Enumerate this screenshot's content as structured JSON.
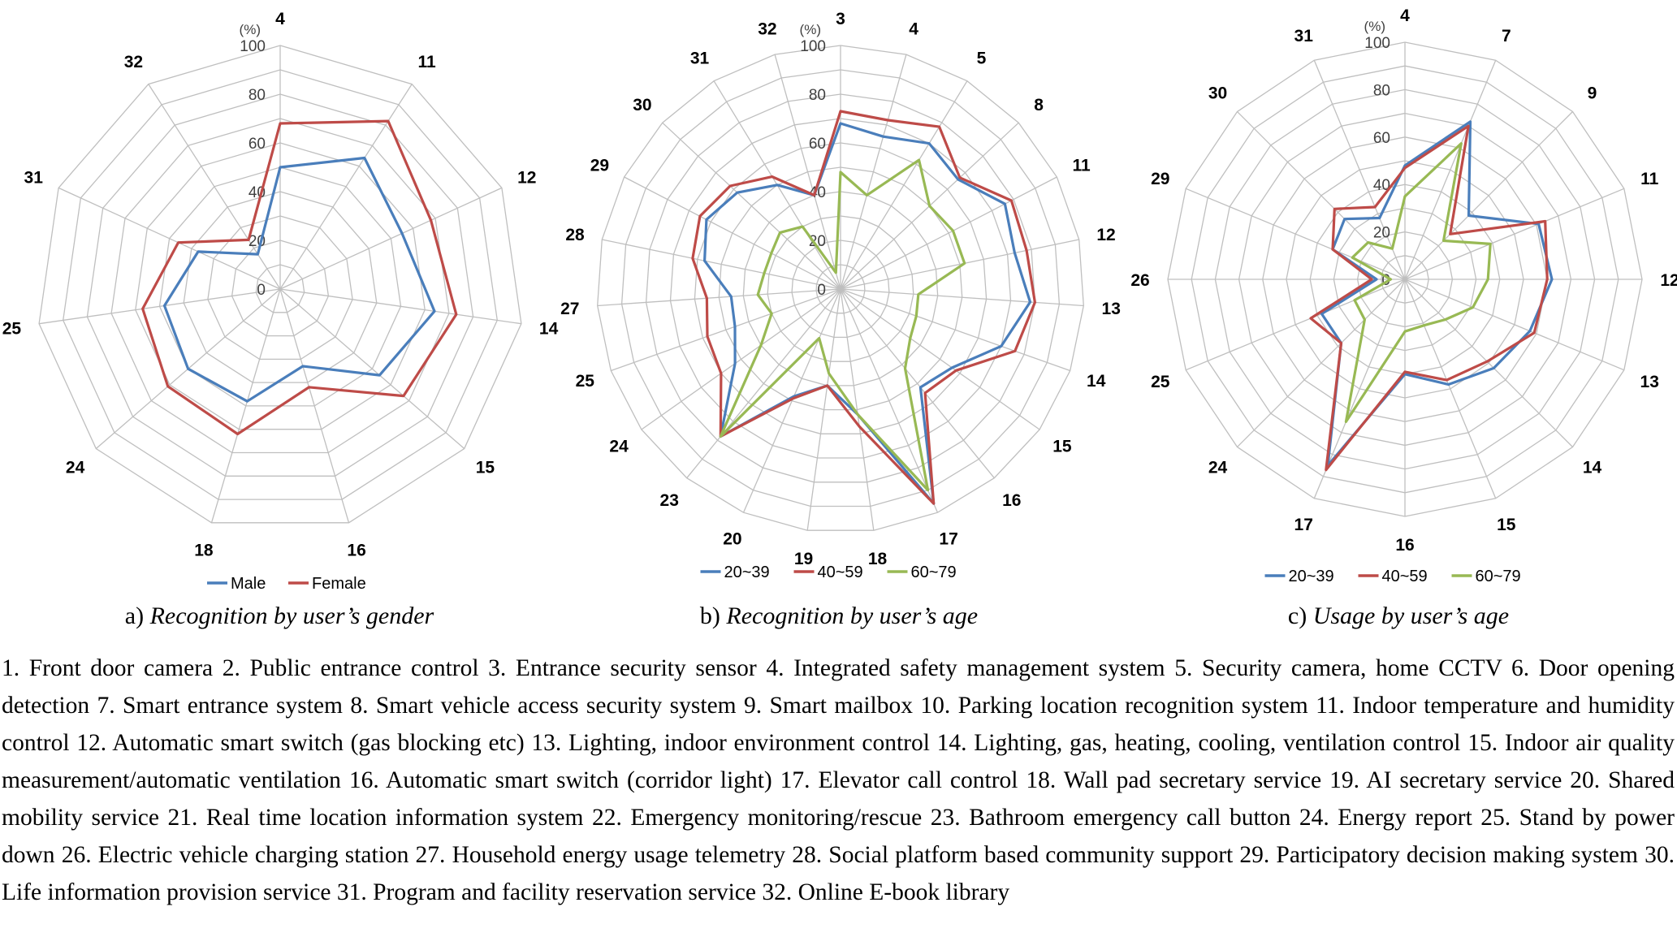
{
  "colors": {
    "male": "#4a7ebb",
    "female": "#be4b48",
    "age20": "#4a7ebb",
    "age40": "#be4b48",
    "age60": "#98b954",
    "grid": "#bfbfbf"
  },
  "chart_data": [
    {
      "type": "radar",
      "panel": "a",
      "caption_prefix": "a)",
      "caption_title": "Recognition by user’s gender",
      "unit_label": "(%)",
      "rlim": [
        0,
        100
      ],
      "ticks": [
        "0",
        "20",
        "40",
        "60",
        "80",
        "100"
      ],
      "categories": [
        "4",
        "11",
        "12",
        "14",
        "15",
        "16",
        "18",
        "24",
        "25",
        "31",
        "32"
      ],
      "series": [
        {
          "name": "Male",
          "values": [
            50,
            64,
            55,
            64,
            54,
            33,
            48,
            50,
            48,
            37,
            17
          ]
        },
        {
          "name": "Female",
          "values": [
            68,
            82,
            68,
            73,
            67,
            42,
            62,
            61,
            57,
            46,
            24
          ]
        }
      ],
      "legend_position": "bottom"
    },
    {
      "type": "radar",
      "panel": "b",
      "caption_prefix": "b)",
      "caption_title": "Recognition by user’s age",
      "unit_label": "(%)",
      "rlim": [
        0,
        100
      ],
      "ticks": [
        "0",
        "20",
        "40",
        "60",
        "80",
        "100"
      ],
      "categories": [
        "3",
        "4",
        "5",
        "8",
        "11",
        "12",
        "13",
        "14",
        "15",
        "16",
        "17",
        "18",
        "19",
        "20",
        "23",
        "24",
        "25",
        "27",
        "28",
        "29",
        "30",
        "31",
        "32"
      ],
      "series": [
        {
          "name": "20~39",
          "values": [
            68,
            65,
            70,
            66,
            76,
            73,
            78,
            70,
            56,
            52,
            96,
            52,
            40,
            48,
            78,
            53,
            46,
            45,
            57,
            62,
            58,
            50,
            40
          ]
        },
        {
          "name": "40~59",
          "values": [
            73,
            72,
            78,
            67,
            79,
            78,
            80,
            76,
            58,
            55,
            96,
            57,
            40,
            49,
            78,
            60,
            58,
            55,
            62,
            65,
            62,
            54,
            40
          ]
        },
        {
          "name": "60~79",
          "values": [
            48,
            40,
            62,
            50,
            52,
            52,
            32,
            33,
            35,
            42,
            90,
            52,
            35,
            22,
            78,
            40,
            30,
            34,
            32,
            32,
            34,
            30,
            7
          ]
        }
      ],
      "legend_position": "bottom"
    },
    {
      "type": "radar",
      "panel": "c",
      "caption_prefix": "c)",
      "caption_title": "Usage by user’s age",
      "unit_label": "(%)",
      "rlim": [
        0,
        100
      ],
      "ticks": [
        "0",
        "20",
        "40",
        "60",
        "80",
        "100"
      ],
      "categories": [
        "4",
        "7",
        "9",
        "11",
        "12",
        "13",
        "14",
        "15",
        "16",
        "17",
        "24",
        "25",
        "26",
        "29",
        "30",
        "31"
      ],
      "series": [
        {
          "name": "20~39",
          "values": [
            48,
            72,
            38,
            61,
            62,
            57,
            53,
            48,
            40,
            85,
            38,
            38,
            12,
            33,
            36,
            28
          ]
        },
        {
          "name": "40~59",
          "values": [
            47,
            70,
            27,
            64,
            60,
            59,
            49,
            46,
            39,
            87,
            38,
            43,
            14,
            33,
            42,
            33
          ]
        },
        {
          "name": "60~79",
          "values": [
            35,
            62,
            23,
            39,
            35,
            31,
            24,
            21,
            22,
            65,
            24,
            23,
            6,
            24,
            22,
            14
          ]
        }
      ],
      "legend_position": "bottom"
    }
  ],
  "legend_text": "1. Front door camera  2. Public entrance control  3. Entrance security sensor  4. Integrated safety management system  5. Security camera, home CCTV  6. Door opening detection  7. Smart entrance system  8. Smart vehicle access security system  9. Smart mailbox  10. Parking location recognition system  11. Indoor temperature and humidity control  12. Automatic smart switch (gas blocking etc)  13. Lighting, indoor environment control  14. Lighting, gas, heating, cooling, ventilation control  15. Indoor air quality measurement/automatic ventilation  16. Automatic smart switch (corridor light)  17. Elevator call control  18. Wall pad secretary service  19. AI secretary service  20. Shared mobility service  21. Real time location information system  22. Emergency monitoring/rescue  23. Bathroom emergency call button  24. Energy report  25. Stand by power down  26. Electric vehicle charging station  27. Household energy usage telemetry  28. Social platform based community support  29. Participatory decision making system  30. Life information provision service  31. Program and facility reservation service  32. Online E-book library"
}
